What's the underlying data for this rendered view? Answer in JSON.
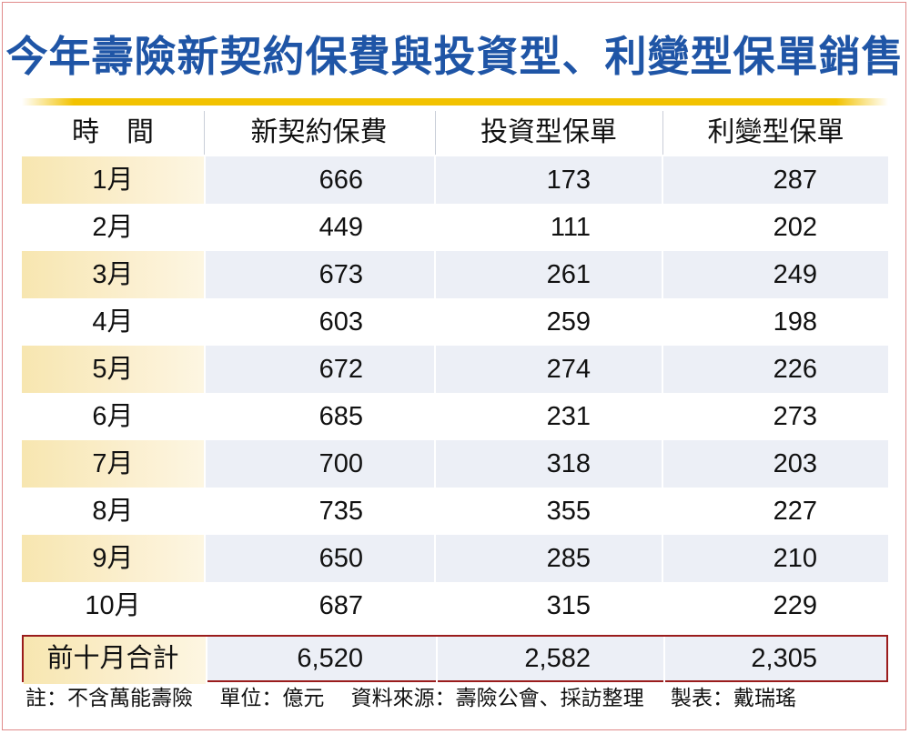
{
  "title": "今年壽險新契約保費與投資型、利變型保單銷售",
  "chart_data": {
    "type": "table",
    "columns": [
      "時　間",
      "新契約保費",
      "投資型保單",
      "利變型保單"
    ],
    "rows": [
      [
        "1月",
        "666",
        "173",
        "287"
      ],
      [
        "2月",
        "449",
        "111",
        "202"
      ],
      [
        "3月",
        "673",
        "261",
        "249"
      ],
      [
        "4月",
        "603",
        "259",
        "198"
      ],
      [
        "5月",
        "672",
        "274",
        "226"
      ],
      [
        "6月",
        "685",
        "231",
        "273"
      ],
      [
        "7月",
        "700",
        "318",
        "203"
      ],
      [
        "8月",
        "735",
        "355",
        "227"
      ],
      [
        "9月",
        "650",
        "285",
        "210"
      ],
      [
        "10月",
        "687",
        "315",
        "229"
      ]
    ],
    "total": [
      "前十月合計",
      "6,520",
      "2,582",
      "2,305"
    ]
  },
  "notes": {
    "note": "註：不含萬能壽險",
    "unit": "單位：億元",
    "source": "資料來源：壽險公會、採訪整理",
    "maker": "製表：戴瑞瑤"
  },
  "colors": {
    "title": "#1f55a6",
    "gold_bar": "#f2c200",
    "row_shade": "#eceff6",
    "month_shade": "#f7e6b0",
    "total_border": "#9a1c1c"
  }
}
